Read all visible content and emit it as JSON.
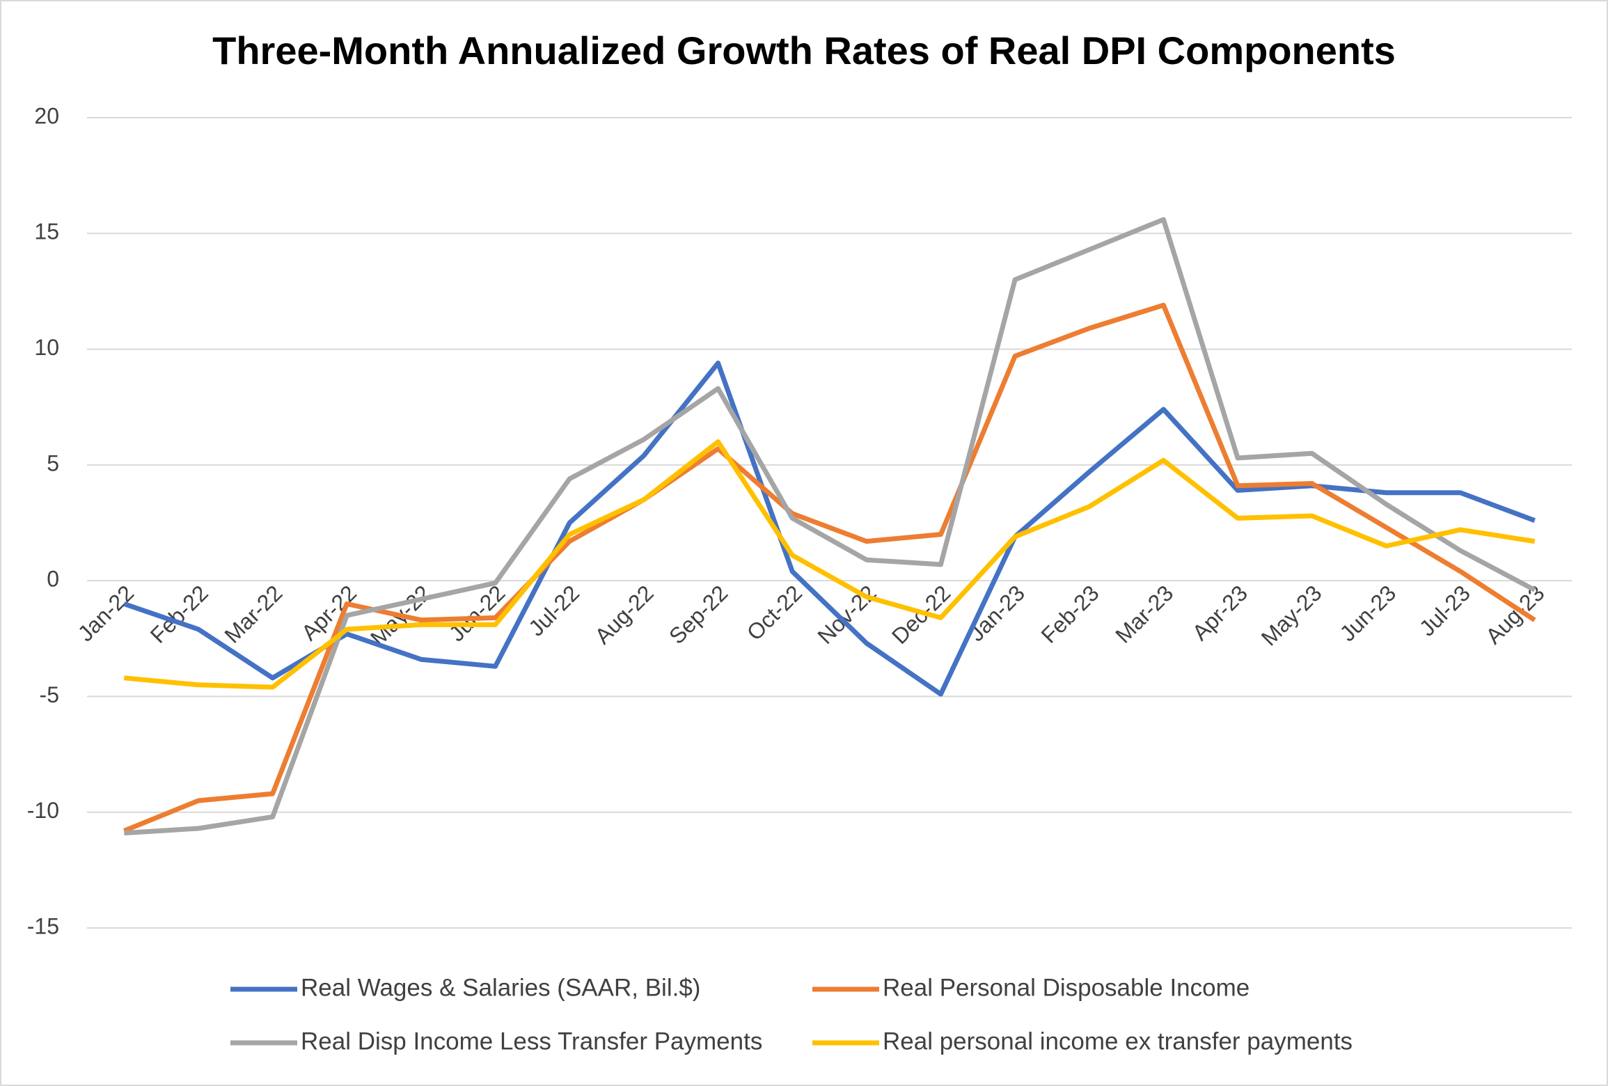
{
  "chart_data": {
    "type": "line",
    "title": "Three-Month Annualized Growth Rates of Real DPI Components",
    "categories": [
      "Jan-22",
      "Feb-22",
      "Mar-22",
      "Apr-22",
      "May-22",
      "Jun-22",
      "Jul-22",
      "Aug-22",
      "Sep-22",
      "Oct-22",
      "Nov-22",
      "Dec-22",
      "Jan-23",
      "Feb-23",
      "Mar-23",
      "Apr-23",
      "May-23",
      "Jun-23",
      "Jul-23",
      "Aug-23"
    ],
    "series": [
      {
        "name": "Real Wages & Salaries (SAAR, Bil.$)",
        "color": "#4472c4",
        "values": [
          -1.0,
          -2.1,
          -4.2,
          -2.3,
          -3.4,
          -3.7,
          2.5,
          5.4,
          9.4,
          0.4,
          -2.7,
          -4.9,
          1.9,
          4.7,
          7.4,
          3.9,
          4.1,
          3.8,
          3.8,
          2.6
        ]
      },
      {
        "name": "Real Personal Disposable Income",
        "color": "#ed7d31",
        "values": [
          -10.8,
          -9.5,
          -9.2,
          -1.0,
          -1.7,
          -1.6,
          1.7,
          3.5,
          5.7,
          2.9,
          1.7,
          2.0,
          9.7,
          10.9,
          11.9,
          4.1,
          4.2,
          2.3,
          0.4,
          -1.7
        ]
      },
      {
        "name": "Real Disp Income Less Transfer Payments",
        "color": "#a5a5a5",
        "values": [
          -10.9,
          -10.7,
          -10.2,
          -1.5,
          -0.8,
          -0.1,
          4.4,
          6.1,
          8.3,
          2.7,
          0.9,
          0.7,
          13.0,
          14.3,
          15.6,
          5.3,
          5.5,
          3.3,
          1.3,
          -0.4
        ]
      },
      {
        "name": "Real personal income ex transfer payments",
        "color": "#ffc000",
        "values": [
          -4.2,
          -4.5,
          -4.6,
          -2.1,
          -1.9,
          -1.9,
          2.0,
          3.5,
          6.0,
          1.1,
          -0.7,
          -1.6,
          1.9,
          3.2,
          5.2,
          2.7,
          2.8,
          1.5,
          2.2,
          1.7
        ]
      }
    ],
    "ylim": [
      -15,
      20
    ],
    "yticks": [
      -15,
      -10,
      -5,
      0,
      5,
      10,
      15,
      20
    ],
    "grid": true,
    "legend": "bottom"
  }
}
